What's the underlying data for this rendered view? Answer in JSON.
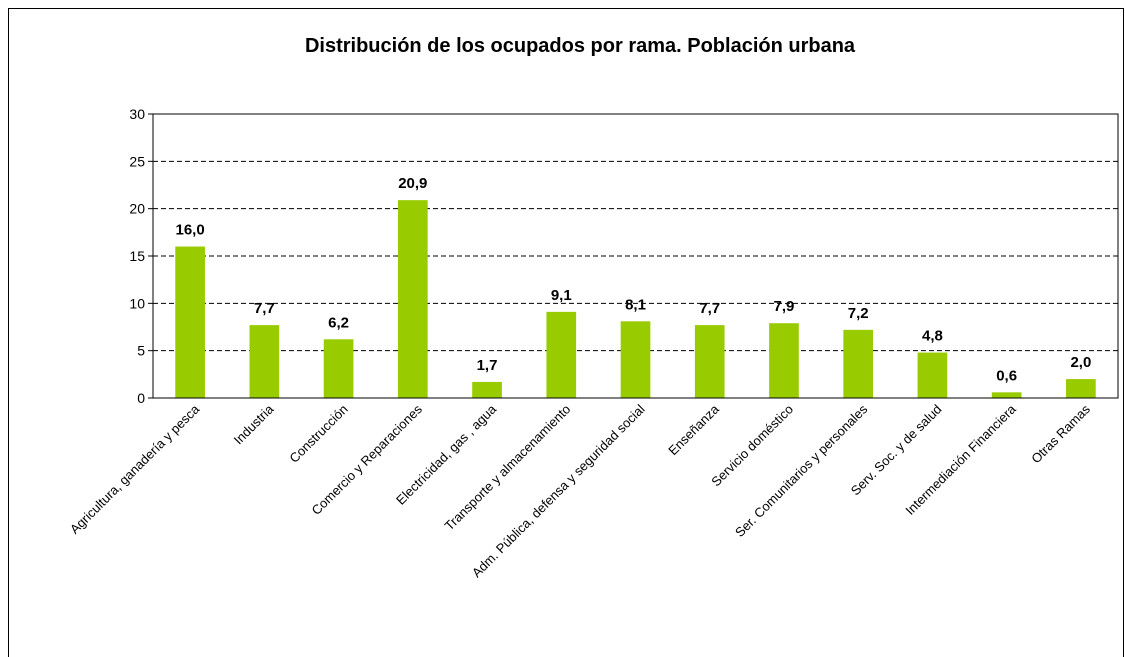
{
  "chart_data": {
    "type": "bar",
    "title": "Distribución de los ocupados por rama. Población urbana",
    "categories": [
      "Agricultura, ganadería y pesca",
      "Industria",
      "Construcción",
      "Comercio y Reparaciones",
      "Electricidad, gas , agua",
      "Transporte y almacenamiento",
      "Adm. Pública, defensa y seguridad social",
      "Enseñanza",
      "Servicio doméstico",
      "Ser. Comunitarios y personales",
      "Serv. Soc. y de salud",
      "Intermediación Financiera",
      "Otras Ramas"
    ],
    "values": [
      16.0,
      7.7,
      6.2,
      20.9,
      1.7,
      9.1,
      8.1,
      7.7,
      7.9,
      7.2,
      4.8,
      0.6,
      2.0
    ],
    "value_labels": [
      "16,0",
      "7,7",
      "6,2",
      "20,9",
      "1,7",
      "9,1",
      "8,1",
      "7,7",
      "7,9",
      "7,2",
      "4,8",
      "0,6",
      "2,0"
    ],
    "color": "#99cc00",
    "ylim": [
      0,
      30
    ],
    "yticks": [
      0,
      5,
      10,
      15,
      20,
      25,
      30
    ],
    "grid": true
  }
}
